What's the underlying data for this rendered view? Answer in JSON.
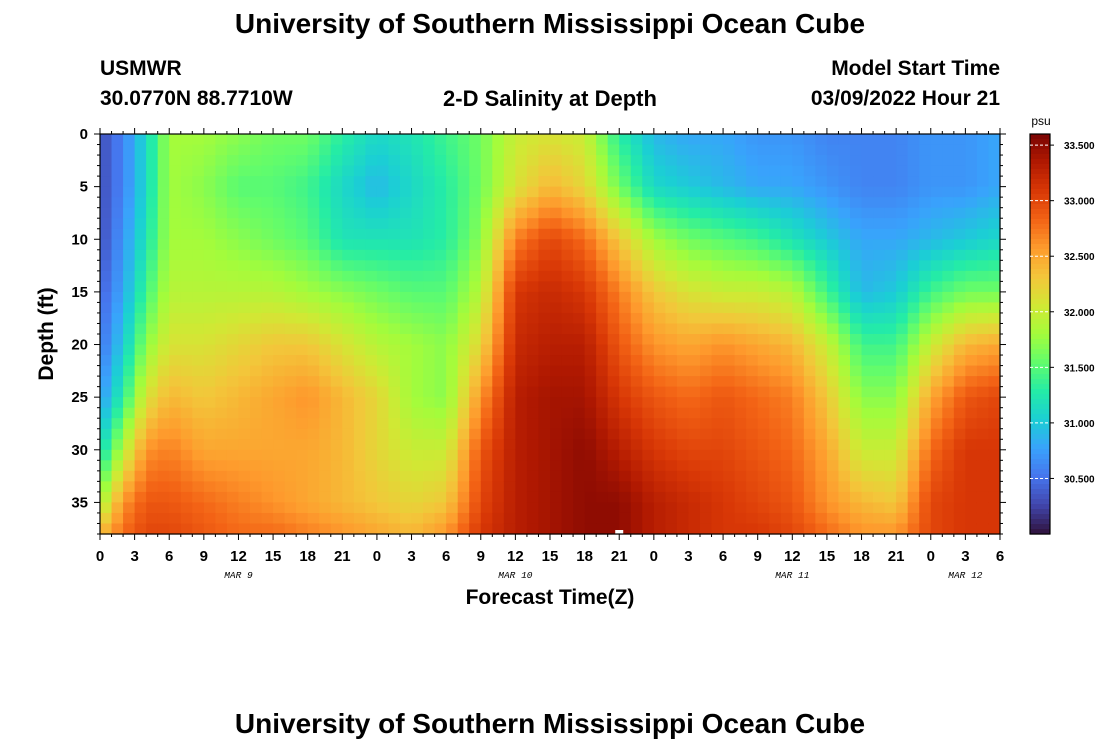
{
  "page": {
    "title": "University of Southern Mississippi Ocean Cube",
    "title_repeat": "University of Southern Mississippi Ocean Cube",
    "station": "USMWR",
    "coords": "30.0770N  88.7710W",
    "subtitle": "2-D Salinity at Depth",
    "model_label": "Model Start Time",
    "model_time": "03/09/2022 Hour 21"
  },
  "chart_data": {
    "type": "heatmap",
    "title": "2-D Salinity at Depth",
    "xlabel": "Forecast Time(Z)",
    "ylabel": "Depth (ft)",
    "x_start_hour": 0,
    "x_end_hour": 78,
    "x_tick_step_hours": 3,
    "x_tick_labels": [
      "0",
      "3",
      "6",
      "9",
      "12",
      "15",
      "18",
      "21",
      "0",
      "3",
      "6",
      "9",
      "12",
      "15",
      "18",
      "21",
      "0",
      "3",
      "6",
      "9",
      "12",
      "15",
      "18",
      "21",
      "0",
      "3",
      "6"
    ],
    "x_date_labels": [
      {
        "label": "MAR 9",
        "hour": 12
      },
      {
        "label": "MAR 10",
        "hour": 36
      },
      {
        "label": "MAR 11",
        "hour": 60
      },
      {
        "label": "MAR 12",
        "hour": 75
      }
    ],
    "now_marker_hour": 45,
    "ylim": [
      0,
      38
    ],
    "y_ticks": [
      0,
      5,
      10,
      15,
      20,
      25,
      30,
      35
    ],
    "colorbar": {
      "unit": "psu",
      "min": 30.0,
      "max": 33.6,
      "labels": [
        "33.500",
        "33.000",
        "32.500",
        "32.000",
        "31.500",
        "31.000",
        "30.500"
      ],
      "values": [
        33.5,
        33.0,
        32.5,
        32.0,
        31.5,
        31.0,
        30.5
      ],
      "colors": [
        "#30123b",
        "#4145ab",
        "#4675ed",
        "#39a2fc",
        "#1bcfd4",
        "#24eca6",
        "#61fc6c",
        "#a4fc3b",
        "#d1e834",
        "#f3c63a",
        "#fe9b2d",
        "#f36315",
        "#d93806",
        "#b11901",
        "#7a0403"
      ]
    },
    "sample_hours": [
      0,
      2,
      4,
      6,
      9,
      12,
      15,
      18,
      21,
      24,
      27,
      30,
      33,
      36,
      39,
      42,
      45,
      48,
      51,
      54,
      57,
      60,
      63,
      66,
      69,
      72,
      75,
      78
    ],
    "sample_depths": [
      0,
      5,
      10,
      15,
      20,
      25,
      30,
      35,
      38
    ],
    "values": [
      [
        30.3,
        30.3,
        30.3,
        30.4,
        30.5,
        30.7,
        31.1,
        31.8,
        32.4
      ],
      [
        30.6,
        30.6,
        30.7,
        30.8,
        31.0,
        31.3,
        31.9,
        32.6,
        32.8
      ],
      [
        31.1,
        31.1,
        31.2,
        31.4,
        31.7,
        32.1,
        32.6,
        32.9,
        33.0
      ],
      [
        31.8,
        31.8,
        31.8,
        31.9,
        32.1,
        32.4,
        32.7,
        32.9,
        33.0
      ],
      [
        31.8,
        31.7,
        31.8,
        31.9,
        32.1,
        32.3,
        32.5,
        32.8,
        32.9
      ],
      [
        31.7,
        31.5,
        31.7,
        31.9,
        32.2,
        32.4,
        32.5,
        32.7,
        32.8
      ],
      [
        31.6,
        31.5,
        31.6,
        31.9,
        32.3,
        32.5,
        32.5,
        32.6,
        32.8
      ],
      [
        31.6,
        31.4,
        31.5,
        31.8,
        32.3,
        32.6,
        32.5,
        32.5,
        32.7
      ],
      [
        31.3,
        31.1,
        31.2,
        31.7,
        32.1,
        32.4,
        32.4,
        32.4,
        32.6
      ],
      [
        31.1,
        30.9,
        31.2,
        31.6,
        31.9,
        32.2,
        32.2,
        32.3,
        32.5
      ],
      [
        31.2,
        31.1,
        31.2,
        31.5,
        31.8,
        31.8,
        32.0,
        32.2,
        32.4
      ],
      [
        31.4,
        31.3,
        31.3,
        31.5,
        31.7,
        31.7,
        32.0,
        32.3,
        32.6
      ],
      [
        31.6,
        31.6,
        31.7,
        31.9,
        32.2,
        32.6,
        32.9,
        33.0,
        33.1
      ],
      [
        32.0,
        32.1,
        32.7,
        33.1,
        33.2,
        33.3,
        33.3,
        33.3,
        33.3
      ],
      [
        32.1,
        32.4,
        33.0,
        33.2,
        33.3,
        33.4,
        33.4,
        33.4,
        33.4
      ],
      [
        32.0,
        32.2,
        32.8,
        33.1,
        33.3,
        33.4,
        33.5,
        33.5,
        33.5
      ],
      [
        31.3,
        31.6,
        32.3,
        32.7,
        32.9,
        33.1,
        33.3,
        33.5,
        33.5
      ],
      [
        30.9,
        31.1,
        31.8,
        32.3,
        32.6,
        32.9,
        33.1,
        33.3,
        33.3
      ],
      [
        30.8,
        31.0,
        31.6,
        32.1,
        32.5,
        32.8,
        33.0,
        33.2,
        33.2
      ],
      [
        30.8,
        30.9,
        31.5,
        32.0,
        32.6,
        32.9,
        33.0,
        33.1,
        33.1
      ],
      [
        30.7,
        30.8,
        31.4,
        32.0,
        32.5,
        32.8,
        32.9,
        33.0,
        33.1
      ],
      [
        30.7,
        30.8,
        31.2,
        31.9,
        32.4,
        32.7,
        32.8,
        32.9,
        33.0
      ],
      [
        30.6,
        30.7,
        31.0,
        31.4,
        32.0,
        32.3,
        32.5,
        32.6,
        32.8
      ],
      [
        30.6,
        30.6,
        30.8,
        30.9,
        31.4,
        31.7,
        32.0,
        32.4,
        32.6
      ],
      [
        30.6,
        30.6,
        30.8,
        31.0,
        31.4,
        31.7,
        32.0,
        32.3,
        32.6
      ],
      [
        30.7,
        30.7,
        30.9,
        31.4,
        32.0,
        32.5,
        32.8,
        33.0,
        33.0
      ],
      [
        30.7,
        30.7,
        31.0,
        31.6,
        32.4,
        32.9,
        33.1,
        33.1,
        33.1
      ],
      [
        30.8,
        30.8,
        31.1,
        31.6,
        32.5,
        33.0,
        33.1,
        33.1,
        33.1
      ]
    ]
  }
}
